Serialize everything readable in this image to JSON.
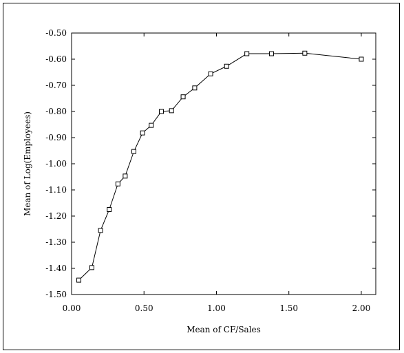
{
  "chart_data": {
    "type": "line",
    "title": "",
    "xlabel": "Mean of CF/Sales",
    "ylabel": "Mean of Log(Employees)",
    "xlim": [
      0.0,
      2.1
    ],
    "ylim": [
      -1.5,
      -0.5
    ],
    "x_ticks": [
      0.0,
      0.5,
      1.0,
      1.5,
      2.0
    ],
    "x_tick_labels": [
      "0.00",
      "0.50",
      "1.00",
      "1.50",
      "2.00"
    ],
    "y_ticks": [
      -0.5,
      -0.6,
      -0.7,
      -0.8,
      -0.9,
      -1.0,
      -1.1,
      -1.2,
      -1.3,
      -1.4,
      -1.5
    ],
    "y_tick_labels": [
      "-0.50",
      "-0.60",
      "-0.70",
      "-0.80",
      "-0.90",
      "-1.00",
      "-1.10",
      "-1.20",
      "-1.30",
      "-1.40",
      "-1.50"
    ],
    "grid": false,
    "marker": "square",
    "series": [
      {
        "name": "",
        "x": [
          0.05,
          0.14,
          0.2,
          0.26,
          0.32,
          0.37,
          0.43,
          0.49,
          0.55,
          0.62,
          0.69,
          0.77,
          0.85,
          0.96,
          1.07,
          1.21,
          1.38,
          1.61,
          2.0
        ],
        "y": [
          -1.445,
          -1.397,
          -1.255,
          -1.175,
          -1.077,
          -1.047,
          -0.953,
          -0.882,
          -0.853,
          -0.8,
          -0.797,
          -0.744,
          -0.71,
          -0.656,
          -0.627,
          -0.579,
          -0.579,
          -0.577,
          -0.6
        ]
      }
    ]
  }
}
